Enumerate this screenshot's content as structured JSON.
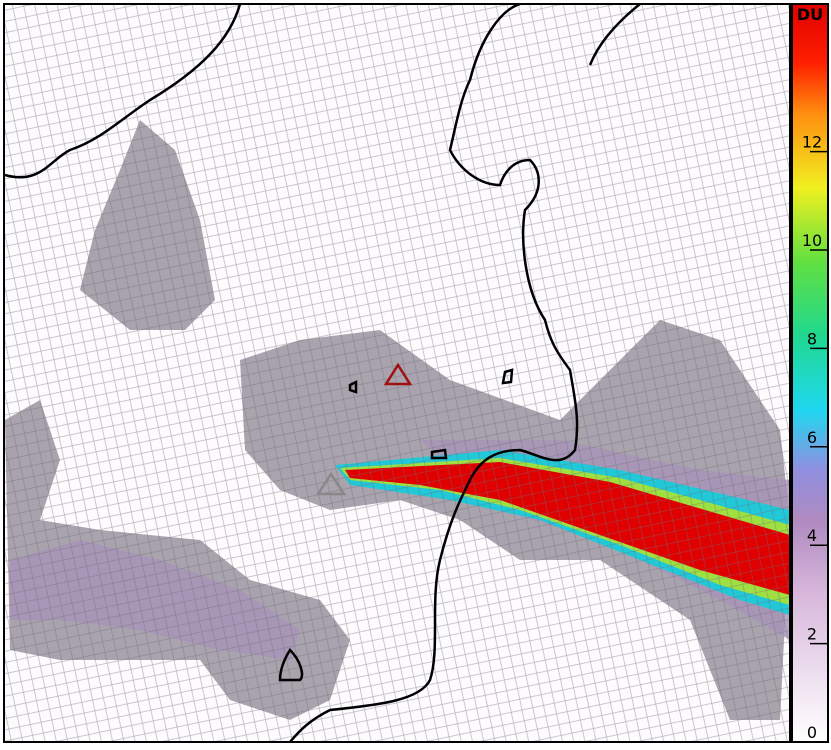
{
  "map": {
    "colorbar": {
      "label": "DU",
      "range": [
        0,
        15
      ],
      "ticks": [
        0,
        2,
        4,
        6,
        8,
        10,
        12
      ]
    }
  }
}
